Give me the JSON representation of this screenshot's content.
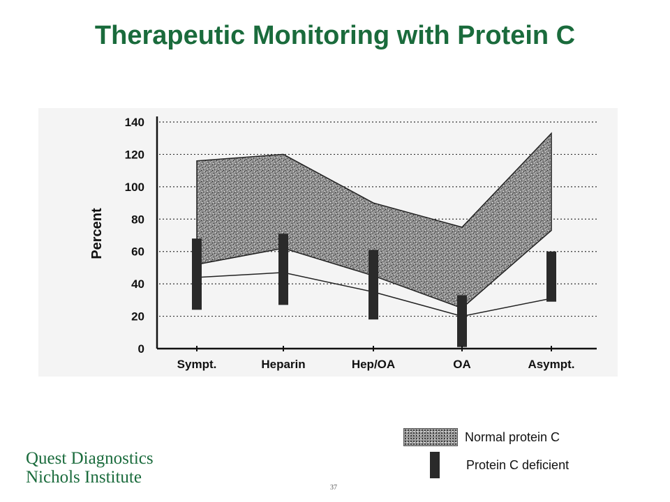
{
  "slide": {
    "title": "Therapeutic Monitoring with Protein C",
    "page_number": "37"
  },
  "logo": {
    "line1": "Quest Diagnostics",
    "line2": "Nichols Institute"
  },
  "legend": {
    "normal_label": "Normal protein C",
    "deficient_label": "Protein C deficient"
  },
  "colors": {
    "title": "#1a6b3c",
    "logo": "#1a6b3c",
    "band_fill": "#9a9a9a",
    "deficient_bar": "#2a2a2a"
  },
  "chart_data": {
    "type": "area",
    "title": "",
    "xlabel": "",
    "ylabel": "Percent",
    "ylim": [
      0,
      140
    ],
    "yticks": [
      0,
      20,
      40,
      60,
      80,
      100,
      120,
      140
    ],
    "grid": "horizontal dotted",
    "categories": [
      "Sympt.",
      "Heparin",
      "Hep/OA",
      "OA",
      "Asympt."
    ],
    "series": [
      {
        "name": "Normal protein C",
        "kind": "band",
        "upper": [
          116,
          120,
          90,
          75,
          133
        ],
        "lower": [
          52,
          62,
          45,
          25,
          73
        ]
      },
      {
        "name": "Protein C deficient",
        "kind": "range_bar",
        "high": [
          68,
          71,
          61,
          33,
          60
        ],
        "low": [
          24,
          27,
          18,
          1,
          29
        ]
      }
    ],
    "extra_lines": [
      {
        "values": [
          44,
          47,
          35,
          20,
          31
        ]
      }
    ]
  }
}
